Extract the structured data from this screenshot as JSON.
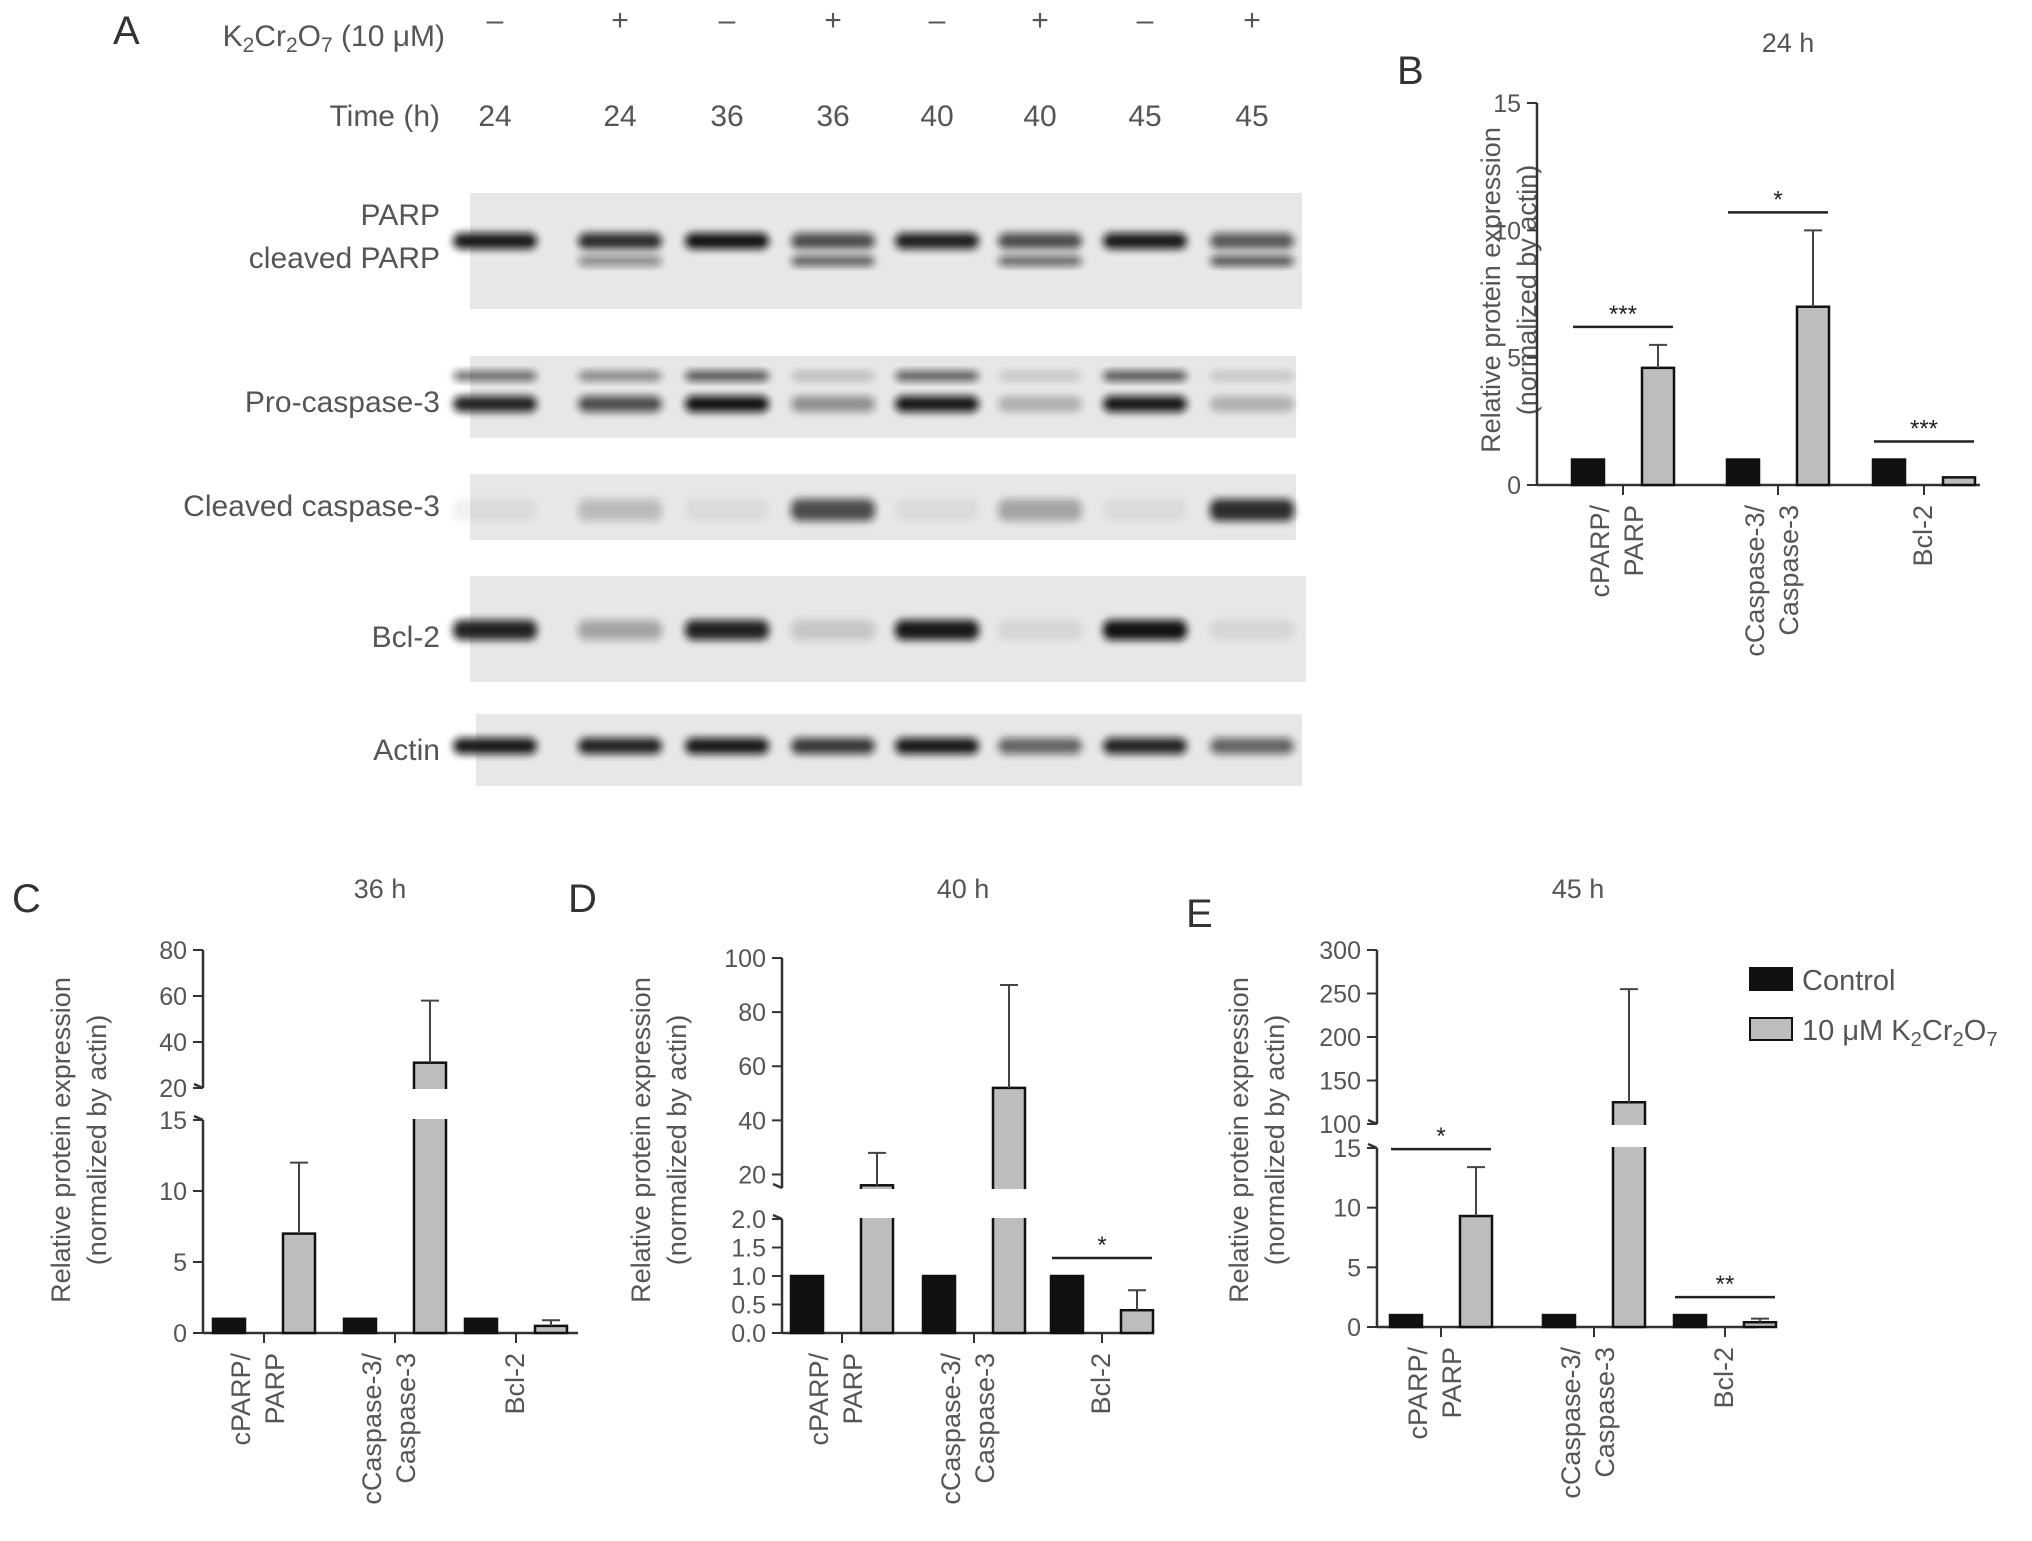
{
  "panel_letters": [
    "A",
    "B",
    "C",
    "D",
    "E"
  ],
  "blot": {
    "treatment_label": "K2Cr2O7 (10 μM)",
    "treatment_label_parts": {
      "k": "K",
      "sub1": "2",
      "cr": "Cr",
      "sub2": "2",
      "o": "O",
      "sub3": "7",
      "rest": " (10 μM)"
    },
    "treatment": [
      "–",
      "+",
      "–",
      "+",
      "–",
      "+",
      "–",
      "+"
    ],
    "time_label": "Time (h)",
    "times": [
      "24",
      "24",
      "36",
      "36",
      "40",
      "40",
      "45",
      "45"
    ],
    "rows": [
      {
        "label": "PARP",
        "label2": "cleaved PARP"
      },
      {
        "label": "Pro-caspase-3"
      },
      {
        "label": "Cleaved caspase-3"
      },
      {
        "label": "Bcl-2"
      },
      {
        "label": "Actin"
      }
    ]
  },
  "shared": {
    "ylabel_line1": "Relative protein expression",
    "ylabel_line2": "(normalized by actin)",
    "categories": [
      [
        "cPARP/",
        "PARP"
      ],
      [
        "cCaspase-3/",
        "Caspase-3"
      ],
      [
        "Bcl-2"
      ]
    ]
  },
  "legend": {
    "control": "Control",
    "treated": "10 μM K2Cr2O7",
    "treated_parts": {
      "pre": "10 μM K",
      "sub1": "2",
      "cr": "Cr",
      "sub2": "2",
      "o": "O",
      "sub3": "7"
    },
    "colors": {
      "control": "#111111",
      "treated": "#bdbdbd"
    }
  },
  "chart_data": [
    {
      "panel": "B",
      "type": "bar",
      "title": "24 h",
      "categories": [
        "cPARP/PARP",
        "cCaspase-3/Caspase-3",
        "Bcl-2"
      ],
      "series": [
        {
          "name": "Control",
          "values": [
            1.0,
            1.0,
            1.0
          ],
          "errors": [
            0,
            0,
            0
          ]
        },
        {
          "name": "10 μM K2Cr2O7",
          "values": [
            4.6,
            7.0,
            0.3
          ],
          "errors": [
            0.9,
            3.0,
            0
          ]
        }
      ],
      "significance": [
        "***",
        "*",
        "***"
      ],
      "ylim": [
        0,
        15
      ],
      "yticks": [
        0,
        5,
        10,
        15
      ]
    },
    {
      "panel": "C",
      "type": "bar",
      "title": "36 h",
      "categories": [
        "cPARP/PARP",
        "cCaspase-3/Caspase-3",
        "Bcl-2"
      ],
      "series": [
        {
          "name": "Control",
          "values": [
            1.0,
            1.0,
            1.0
          ],
          "errors": [
            0,
            0,
            0
          ]
        },
        {
          "name": "10 μM K2Cr2O7",
          "values": [
            7.0,
            31.0,
            0.5
          ],
          "errors": [
            5.0,
            27.0,
            0.4
          ]
        }
      ],
      "significance": [
        "",
        "",
        ""
      ],
      "broken_axis": {
        "lower": [
          0,
          15
        ],
        "upper": [
          20,
          80
        ]
      },
      "yticks": [
        0,
        5,
        10,
        15,
        20,
        40,
        60,
        80
      ]
    },
    {
      "panel": "D",
      "type": "bar",
      "title": "40 h",
      "categories": [
        "cPARP/PARP",
        "cCaspase-3/Caspase-3",
        "Bcl-2"
      ],
      "series": [
        {
          "name": "Control",
          "values": [
            1.0,
            1.0,
            1.0
          ],
          "errors": [
            0,
            0,
            0
          ]
        },
        {
          "name": "10 μM K2Cr2O7",
          "values": [
            16.0,
            52.0,
            0.4
          ],
          "errors": [
            12.0,
            38.0,
            0.35
          ]
        }
      ],
      "significance": [
        "",
        "",
        "*"
      ],
      "broken_axis": {
        "lower": [
          0,
          2
        ],
        "upper": [
          15,
          100
        ]
      },
      "yticks": [
        "0.0",
        "0.5",
        "1.0",
        "1.5",
        "2.0",
        "20",
        "40",
        "60",
        "80",
        "100"
      ]
    },
    {
      "panel": "E",
      "type": "bar",
      "title": "45 h",
      "categories": [
        "cPARP/PARP",
        "cCaspase-3/Caspase-3",
        "Bcl-2"
      ],
      "series": [
        {
          "name": "Control",
          "values": [
            1.0,
            1.0,
            1.0
          ],
          "errors": [
            0,
            0,
            0
          ]
        },
        {
          "name": "10 μM K2Cr2O7",
          "values": [
            9.3,
            125.0,
            0.4
          ],
          "errors": [
            4.1,
            130.0,
            0.3
          ]
        }
      ],
      "significance": [
        "*",
        "",
        "**"
      ],
      "broken_axis": {
        "lower": [
          0,
          15
        ],
        "upper": [
          100,
          300
        ]
      },
      "yticks": [
        0,
        5,
        10,
        15,
        100,
        150,
        200,
        250,
        300
      ]
    }
  ]
}
